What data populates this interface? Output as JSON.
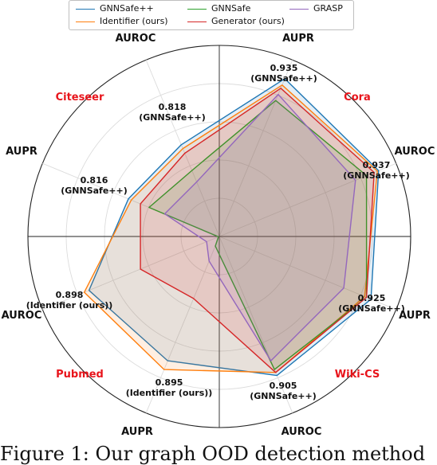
{
  "chart_data": {
    "type": "radar",
    "axes": [
      {
        "label": "AUPR",
        "dataset": "Cora"
      },
      {
        "label": "AUROC",
        "dataset": "Cora"
      },
      {
        "label": "AUPR",
        "dataset": "Wiki-CS"
      },
      {
        "label": "AUROC",
        "dataset": "Wiki-CS"
      },
      {
        "label": "AUPR",
        "dataset": "Pubmed"
      },
      {
        "label": "AUROC",
        "dataset": "Pubmed"
      },
      {
        "label": "AUPR",
        "dataset": "Citeseer"
      },
      {
        "label": "AUROC",
        "dataset": "Citeseer"
      }
    ],
    "datasets": [
      "Cora",
      "Wiki-CS",
      "Pubmed",
      "Citeseer"
    ],
    "dataset_color": "#e8141b",
    "series": [
      {
        "name": "GNNSafe++",
        "color": "#1f77b4",
        "values": [
          0.935,
          0.937,
          0.925,
          0.905,
          0.88,
          0.89,
          0.816,
          0.818
        ]
      },
      {
        "name": "Identifier (ours)",
        "color": "#ff7f0e",
        "values": [
          0.925,
          0.935,
          0.915,
          0.9,
          0.895,
          0.898,
          0.81,
          0.81
        ]
      },
      {
        "name": "GNNSafe",
        "color": "#2ca02c",
        "values": [
          0.9,
          0.918,
          0.918,
          0.895,
          0.55,
          0.45,
          0.77,
          0.76
        ]
      },
      {
        "name": "Generator (ours)",
        "color": "#d62728",
        "values": [
          0.92,
          0.93,
          0.918,
          0.9,
          0.75,
          0.79,
          0.79,
          0.8
        ]
      },
      {
        "name": "GRASP",
        "color": "#9467bd",
        "values": [
          0.91,
          0.9,
          0.88,
          0.88,
          0.63,
          0.57,
          0.73,
          0.73
        ]
      }
    ],
    "annotations": [
      {
        "axis": 0,
        "value": "0.935",
        "label": "(GNNSafe++)"
      },
      {
        "axis": 1,
        "value": "0.937",
        "label": "(GNNSafe++)"
      },
      {
        "axis": 2,
        "value": "0.925",
        "label": "(GNNSafe++)"
      },
      {
        "axis": 3,
        "value": "0.905",
        "label": "(GNNSafe++)"
      },
      {
        "axis": 4,
        "value": "0.895",
        "label": "(Identifier (ours))"
      },
      {
        "axis": 5,
        "value": "0.898",
        "label": "(Identifier (ours))"
      },
      {
        "axis": 6,
        "value": "0.816",
        "label": "(GNNSafe++)"
      },
      {
        "axis": 7,
        "value": "0.818",
        "label": "(GNNSafe++)"
      }
    ],
    "grid": true,
    "legend_position": "top-center"
  },
  "caption": "Figure 1: Our graph OOD detection method"
}
